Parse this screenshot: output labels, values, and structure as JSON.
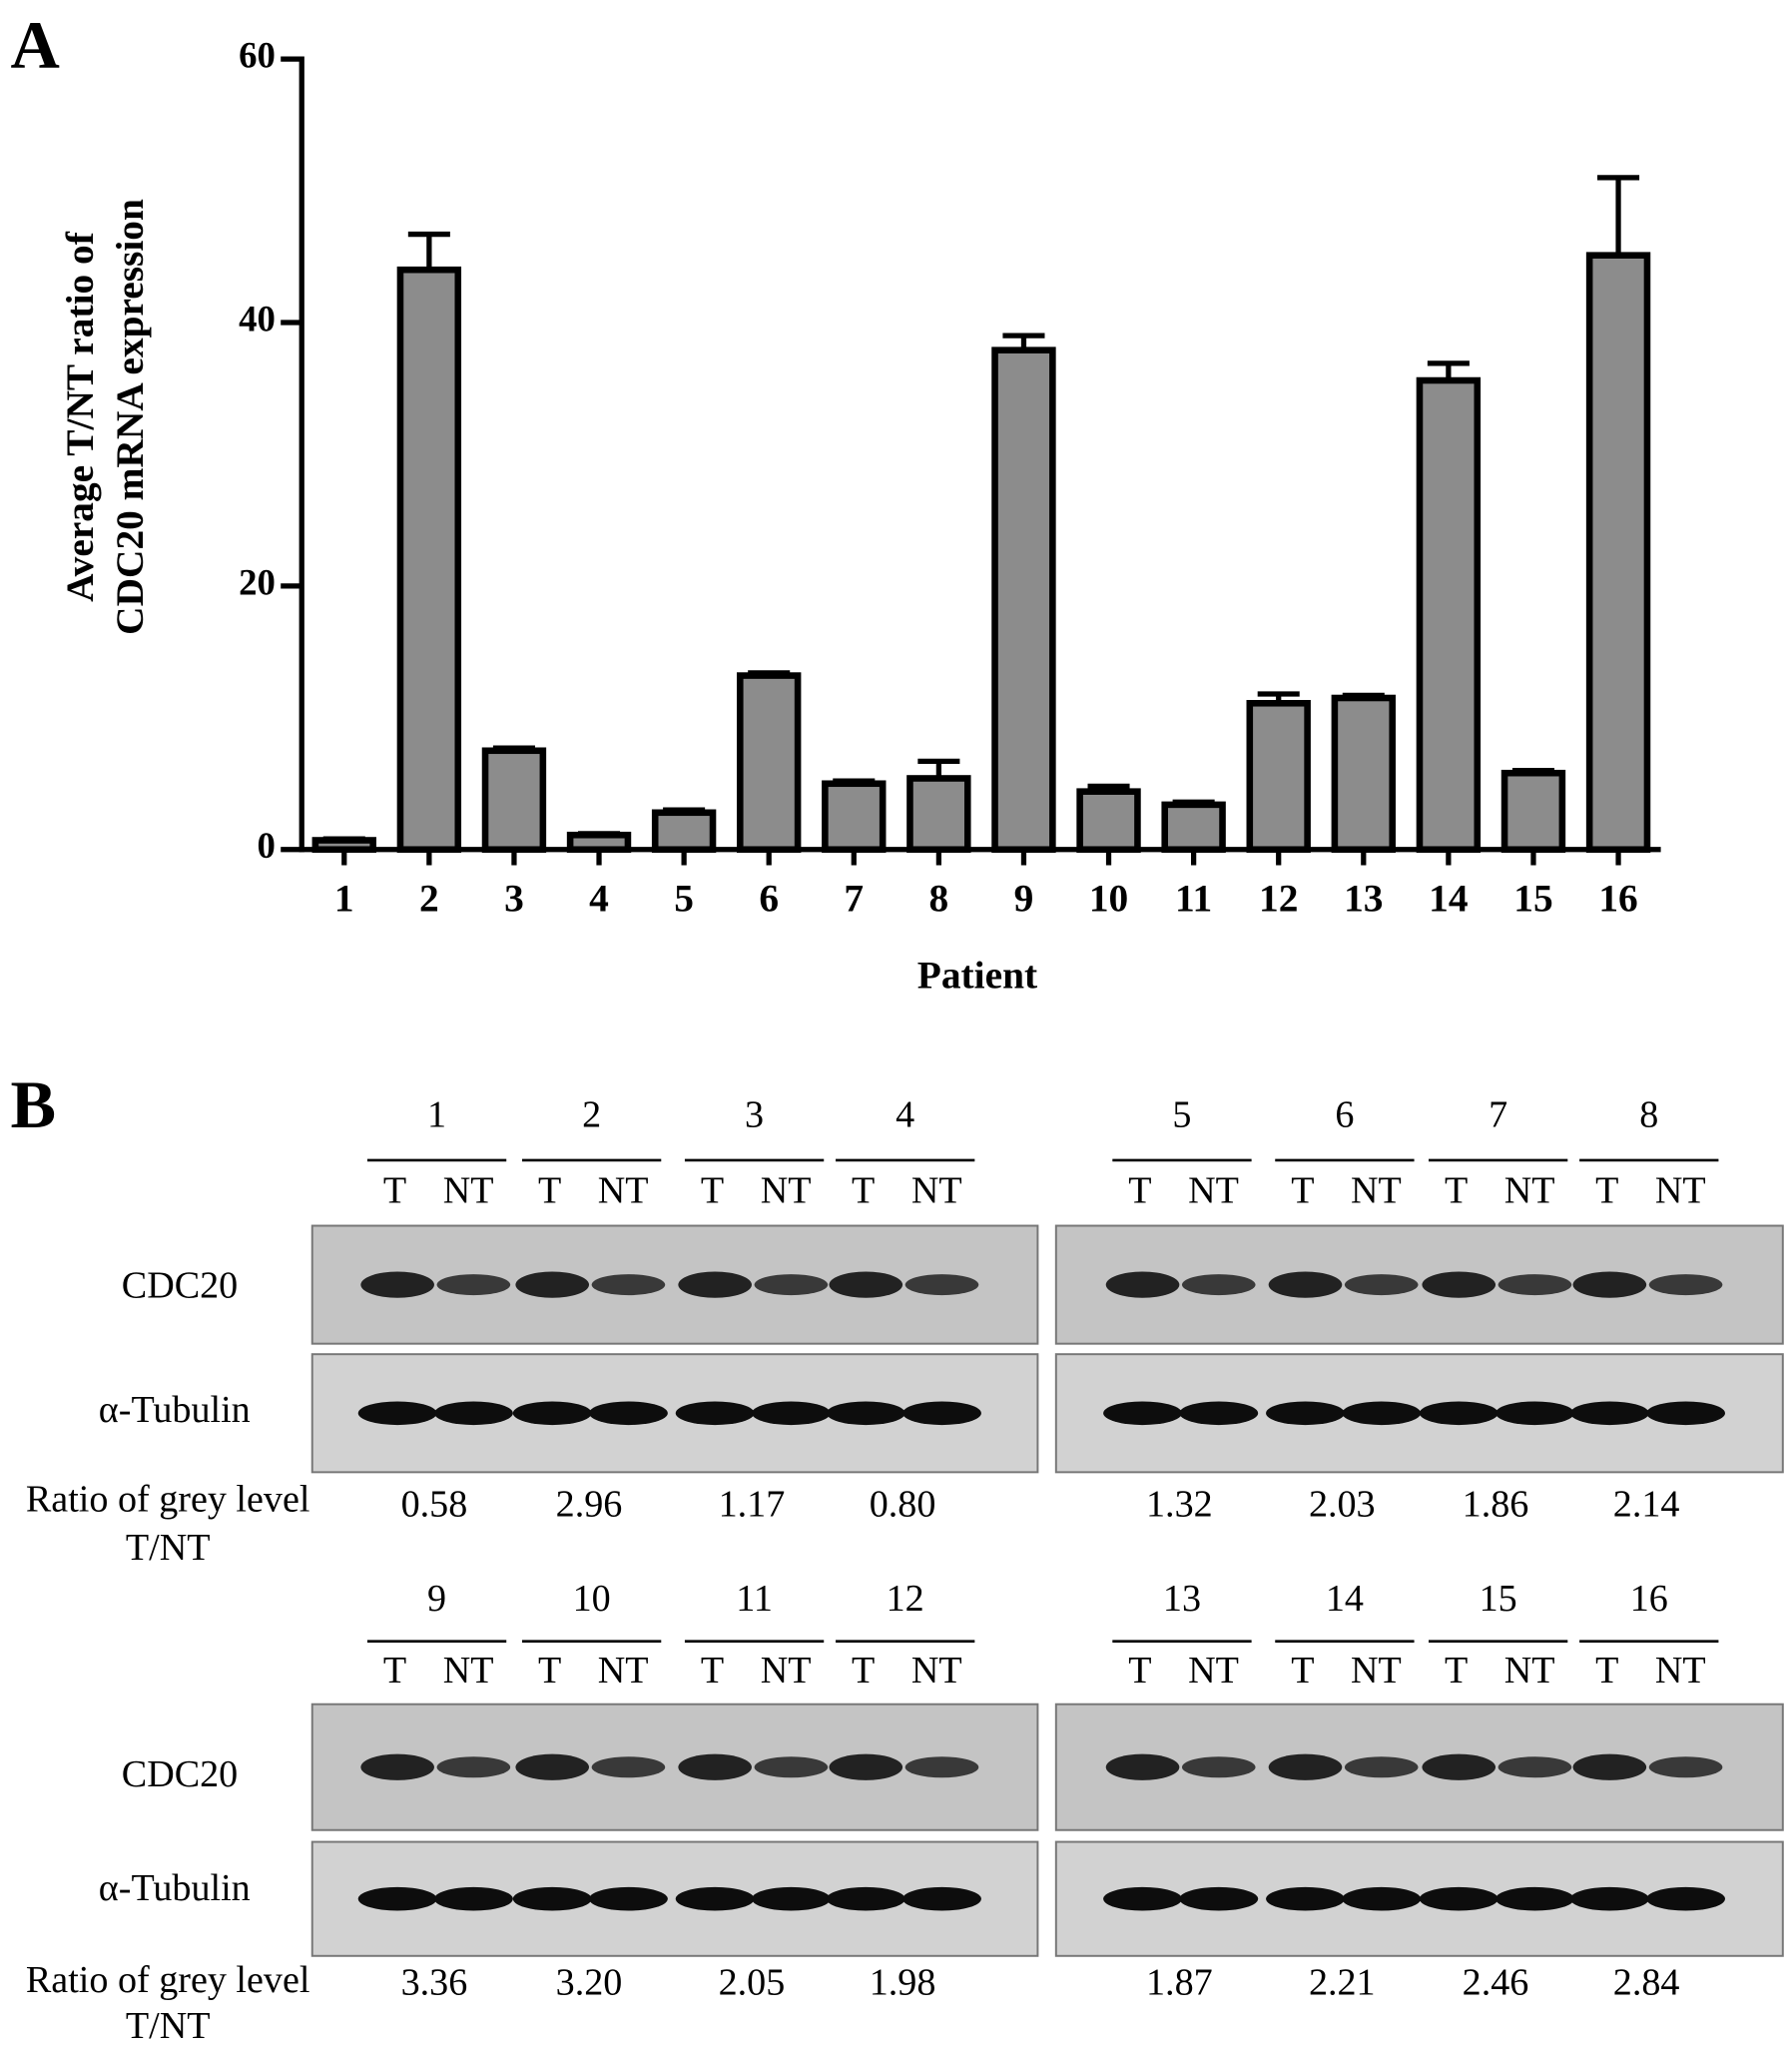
{
  "panel_a_label": "A",
  "chart_data": {
    "type": "bar",
    "ylabel": [
      "Average T/NT ratio of",
      "CDC20 mRNA expression"
    ],
    "xlabel": "Patient",
    "categories": [
      "1",
      "2",
      "3",
      "4",
      "5",
      "6",
      "7",
      "8",
      "9",
      "10",
      "11",
      "12",
      "13",
      "14",
      "15",
      "16"
    ],
    "values": [
      0.7,
      44,
      7.5,
      1.1,
      2.8,
      13.2,
      5.0,
      5.4,
      37.9,
      4.4,
      3.4,
      11.1,
      11.5,
      35.6,
      5.8,
      45.1
    ],
    "errors": [
      0.1,
      2.7,
      0.2,
      0.1,
      0.2,
      0.2,
      0.2,
      1.3,
      1.1,
      0.4,
      0.2,
      0.7,
      0.2,
      1.3,
      0.2,
      5.9
    ],
    "color": "#8c8c8c",
    "ylim": [
      0,
      60
    ],
    "yticks": [
      0,
      20,
      40,
      60
    ]
  },
  "panel_b_label": "B",
  "blot": {
    "proteins": [
      "CDC20",
      "α-Tubulin"
    ],
    "lanes": [
      "T",
      "NT"
    ],
    "ratio_label": [
      "Ratio of grey level",
      "T/NT"
    ],
    "rows": [
      {
        "groups": [
          {
            "patients": [
              "1",
              "2",
              "3",
              "4"
            ],
            "ratios": [
              "0.58",
              "2.96",
              "1.17",
              "0.80"
            ]
          },
          {
            "patients": [
              "5",
              "6",
              "7",
              "8"
            ],
            "ratios": [
              "1.32",
              "2.03",
              "1.86",
              "2.14"
            ]
          }
        ]
      },
      {
        "groups": [
          {
            "patients": [
              "9",
              "10",
              "11",
              "12"
            ],
            "ratios": [
              "3.36",
              "3.20",
              "2.05",
              "1.98"
            ]
          },
          {
            "patients": [
              "13",
              "14",
              "15",
              "16"
            ],
            "ratios": [
              "1.87",
              "2.21",
              "2.46",
              "2.84"
            ]
          }
        ]
      }
    ]
  }
}
